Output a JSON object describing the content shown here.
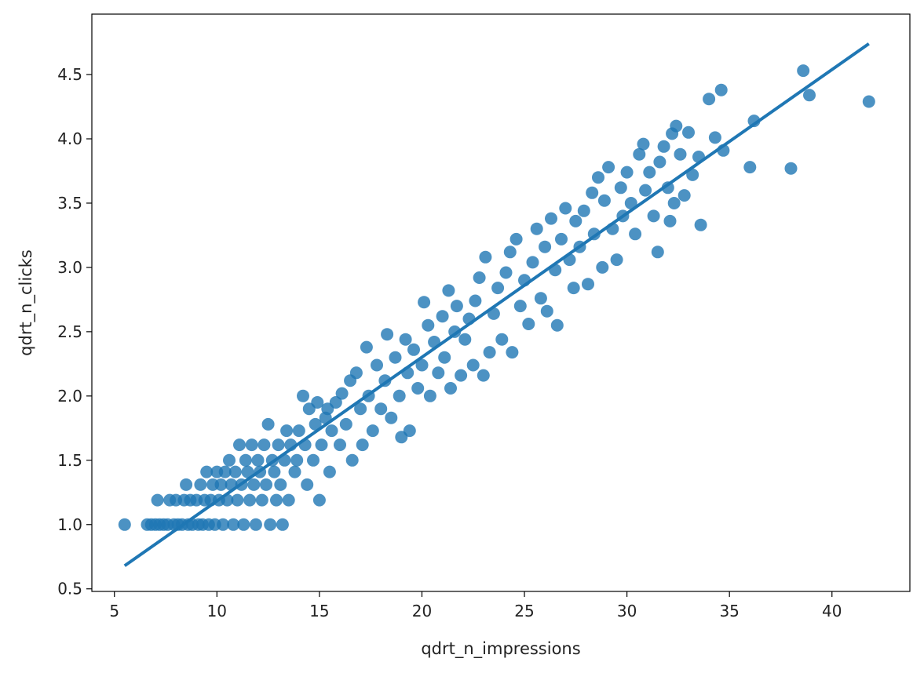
{
  "chart_data": {
    "type": "scatter",
    "title": "",
    "xlabel": "qdrt_n_impressions",
    "ylabel": "qdrt_n_clicks",
    "xlim": [
      3.9,
      43.8
    ],
    "ylim": [
      0.48,
      4.97
    ],
    "xticks": [
      "5",
      "10",
      "15",
      "20",
      "25",
      "30",
      "35",
      "40"
    ],
    "yticks": [
      "0.5",
      "1.0",
      "1.5",
      "2.0",
      "2.5",
      "3.0",
      "3.5",
      "4.0",
      "4.5"
    ],
    "grid": false,
    "legend": "none",
    "colors": {
      "points": "#1f77b4",
      "line": "#1f77b4"
    },
    "regression_line": {
      "x": [
        5.5,
        41.8
      ],
      "y": [
        0.68,
        4.74
      ]
    },
    "points": [
      [
        5.5,
        1.0
      ],
      [
        6.6,
        1.0
      ],
      [
        6.8,
        1.0
      ],
      [
        7.0,
        1.0
      ],
      [
        7.1,
        1.19
      ],
      [
        7.2,
        1.0
      ],
      [
        7.4,
        1.0
      ],
      [
        7.6,
        1.0
      ],
      [
        7.7,
        1.19
      ],
      [
        7.9,
        1.0
      ],
      [
        8.0,
        1.19
      ],
      [
        8.1,
        1.0
      ],
      [
        8.3,
        1.0
      ],
      [
        8.4,
        1.19
      ],
      [
        8.5,
        1.31
      ],
      [
        8.6,
        1.0
      ],
      [
        8.7,
        1.19
      ],
      [
        8.8,
        1.0
      ],
      [
        9.0,
        1.19
      ],
      [
        9.1,
        1.0
      ],
      [
        9.2,
        1.31
      ],
      [
        9.3,
        1.0
      ],
      [
        9.4,
        1.19
      ],
      [
        9.5,
        1.41
      ],
      [
        9.6,
        1.0
      ],
      [
        9.7,
        1.19
      ],
      [
        9.8,
        1.31
      ],
      [
        9.9,
        1.0
      ],
      [
        10.0,
        1.41
      ],
      [
        10.1,
        1.19
      ],
      [
        10.2,
        1.31
      ],
      [
        10.3,
        1.0
      ],
      [
        10.4,
        1.41
      ],
      [
        10.5,
        1.19
      ],
      [
        10.6,
        1.5
      ],
      [
        10.7,
        1.31
      ],
      [
        10.8,
        1.0
      ],
      [
        10.9,
        1.41
      ],
      [
        11.0,
        1.19
      ],
      [
        11.1,
        1.62
      ],
      [
        11.2,
        1.31
      ],
      [
        11.3,
        1.0
      ],
      [
        11.4,
        1.5
      ],
      [
        11.5,
        1.41
      ],
      [
        11.6,
        1.19
      ],
      [
        11.7,
        1.62
      ],
      [
        11.8,
        1.31
      ],
      [
        11.9,
        1.0
      ],
      [
        12.0,
        1.5
      ],
      [
        12.1,
        1.41
      ],
      [
        12.2,
        1.19
      ],
      [
        12.3,
        1.62
      ],
      [
        12.4,
        1.31
      ],
      [
        12.5,
        1.78
      ],
      [
        12.6,
        1.0
      ],
      [
        12.7,
        1.5
      ],
      [
        12.8,
        1.41
      ],
      [
        12.9,
        1.19
      ],
      [
        13.0,
        1.62
      ],
      [
        13.1,
        1.31
      ],
      [
        13.2,
        1.0
      ],
      [
        13.3,
        1.5
      ],
      [
        13.4,
        1.73
      ],
      [
        13.5,
        1.19
      ],
      [
        13.6,
        1.62
      ],
      [
        13.8,
        1.41
      ],
      [
        13.9,
        1.5
      ],
      [
        14.0,
        1.73
      ],
      [
        14.2,
        2.0
      ],
      [
        14.3,
        1.62
      ],
      [
        14.4,
        1.31
      ],
      [
        14.5,
        1.9
      ],
      [
        14.7,
        1.5
      ],
      [
        14.8,
        1.78
      ],
      [
        14.9,
        1.95
      ],
      [
        15.0,
        1.19
      ],
      [
        15.1,
        1.62
      ],
      [
        15.3,
        1.83
      ],
      [
        15.4,
        1.9
      ],
      [
        15.5,
        1.41
      ],
      [
        15.6,
        1.73
      ],
      [
        15.8,
        1.95
      ],
      [
        16.0,
        1.62
      ],
      [
        16.1,
        2.02
      ],
      [
        16.3,
        1.78
      ],
      [
        16.5,
        2.12
      ],
      [
        16.6,
        1.5
      ],
      [
        16.8,
        2.18
      ],
      [
        17.0,
        1.9
      ],
      [
        17.1,
        1.62
      ],
      [
        17.3,
        2.38
      ],
      [
        17.4,
        2.0
      ],
      [
        17.6,
        1.73
      ],
      [
        17.8,
        2.24
      ],
      [
        18.0,
        1.9
      ],
      [
        18.2,
        2.12
      ],
      [
        18.3,
        2.48
      ],
      [
        18.5,
        1.83
      ],
      [
        18.7,
        2.3
      ],
      [
        18.9,
        2.0
      ],
      [
        19.0,
        1.68
      ],
      [
        19.2,
        2.44
      ],
      [
        19.3,
        2.18
      ],
      [
        19.4,
        1.73
      ],
      [
        19.6,
        2.36
      ],
      [
        19.8,
        2.06
      ],
      [
        20.0,
        2.24
      ],
      [
        20.1,
        2.73
      ],
      [
        20.3,
        2.55
      ],
      [
        20.4,
        2.0
      ],
      [
        20.6,
        2.42
      ],
      [
        20.8,
        2.18
      ],
      [
        21.0,
        2.62
      ],
      [
        21.1,
        2.3
      ],
      [
        21.3,
        2.82
      ],
      [
        21.4,
        2.06
      ],
      [
        21.6,
        2.5
      ],
      [
        21.7,
        2.7
      ],
      [
        21.9,
        2.16
      ],
      [
        22.1,
        2.44
      ],
      [
        22.3,
        2.6
      ],
      [
        22.5,
        2.24
      ],
      [
        22.6,
        2.74
      ],
      [
        22.8,
        2.92
      ],
      [
        23.0,
        2.16
      ],
      [
        23.1,
        3.08
      ],
      [
        23.3,
        2.34
      ],
      [
        23.5,
        2.64
      ],
      [
        23.7,
        2.84
      ],
      [
        23.9,
        2.44
      ],
      [
        24.1,
        2.96
      ],
      [
        24.3,
        3.12
      ],
      [
        24.4,
        2.34
      ],
      [
        24.6,
        3.22
      ],
      [
        24.8,
        2.7
      ],
      [
        25.0,
        2.9
      ],
      [
        25.2,
        2.56
      ],
      [
        25.4,
        3.04
      ],
      [
        25.6,
        3.3
      ],
      [
        25.8,
        2.76
      ],
      [
        26.0,
        3.16
      ],
      [
        26.1,
        2.66
      ],
      [
        26.3,
        3.38
      ],
      [
        26.5,
        2.98
      ],
      [
        26.6,
        2.55
      ],
      [
        26.8,
        3.22
      ],
      [
        27.0,
        3.46
      ],
      [
        27.2,
        3.06
      ],
      [
        27.4,
        2.84
      ],
      [
        27.5,
        3.36
      ],
      [
        27.7,
        3.16
      ],
      [
        27.9,
        3.44
      ],
      [
        28.1,
        2.87
      ],
      [
        28.3,
        3.58
      ],
      [
        28.4,
        3.26
      ],
      [
        28.6,
        3.7
      ],
      [
        28.8,
        3.0
      ],
      [
        28.9,
        3.52
      ],
      [
        29.1,
        3.78
      ],
      [
        29.3,
        3.3
      ],
      [
        29.5,
        3.06
      ],
      [
        29.7,
        3.62
      ],
      [
        29.8,
        3.4
      ],
      [
        30.0,
        3.74
      ],
      [
        30.2,
        3.5
      ],
      [
        30.4,
        3.26
      ],
      [
        30.6,
        3.88
      ],
      [
        30.8,
        3.96
      ],
      [
        30.9,
        3.6
      ],
      [
        31.1,
        3.74
      ],
      [
        31.3,
        3.4
      ],
      [
        31.5,
        3.12
      ],
      [
        31.6,
        3.82
      ],
      [
        31.8,
        3.94
      ],
      [
        32.0,
        3.62
      ],
      [
        32.1,
        3.36
      ],
      [
        32.2,
        4.04
      ],
      [
        32.3,
        3.5
      ],
      [
        32.4,
        4.1
      ],
      [
        32.6,
        3.88
      ],
      [
        32.8,
        3.56
      ],
      [
        33.0,
        4.05
      ],
      [
        33.2,
        3.72
      ],
      [
        33.5,
        3.86
      ],
      [
        33.6,
        3.33
      ],
      [
        34.0,
        4.31
      ],
      [
        34.3,
        4.01
      ],
      [
        34.6,
        4.38
      ],
      [
        34.7,
        3.91
      ],
      [
        36.0,
        3.78
      ],
      [
        36.2,
        4.14
      ],
      [
        38.0,
        3.77
      ],
      [
        38.6,
        4.53
      ],
      [
        38.9,
        4.34
      ],
      [
        41.8,
        4.29
      ]
    ]
  }
}
